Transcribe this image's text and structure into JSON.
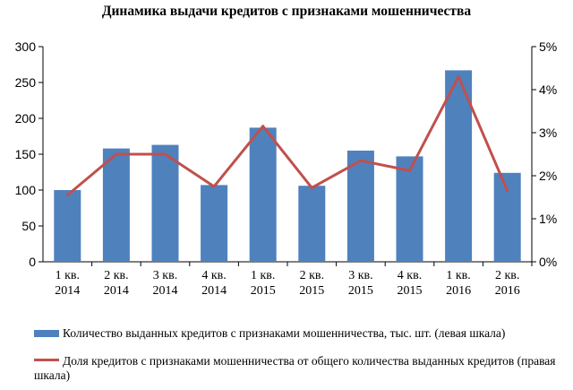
{
  "chart_data": {
    "type": "bar",
    "title": "Динамика выдачи кредитов с признаками мошенничества",
    "categories": [
      "1 кв.\n2014",
      "2 кв.\n2014",
      "3 кв.\n2014",
      "4 кв.\n2014",
      "1 кв.\n2015",
      "2 кв.\n2015",
      "3 кв.\n2015",
      "4 кв.\n2015",
      "1 кв.\n2016",
      "2 кв.\n2016"
    ],
    "series": [
      {
        "name": "Количество выданных кредитов с признаками мошенничества, тыс. шт. (левая шкала)",
        "type": "bar",
        "axis": "left",
        "color": "#4f81bd",
        "values": [
          100,
          158,
          163,
          107,
          187,
          106,
          155,
          147,
          267,
          124
        ]
      },
      {
        "name": "Доля кредитов с признаками мошенничества от общего количества выданных кредитов (правая шкала)",
        "type": "line",
        "axis": "right",
        "color": "#c0504d",
        "values": [
          1.55,
          2.5,
          2.5,
          1.75,
          3.15,
          1.72,
          2.35,
          2.12,
          4.3,
          1.65
        ]
      }
    ],
    "ylim_left": [
      0,
      300
    ],
    "yticks_left": [
      "0",
      "50",
      "100",
      "150",
      "200",
      "250",
      "300"
    ],
    "ylim_right": [
      0,
      5
    ],
    "yticks_right": [
      "0%",
      "1%",
      "2%",
      "3%",
      "4%",
      "5%"
    ],
    "grid": false,
    "legend_position": "bottom"
  }
}
